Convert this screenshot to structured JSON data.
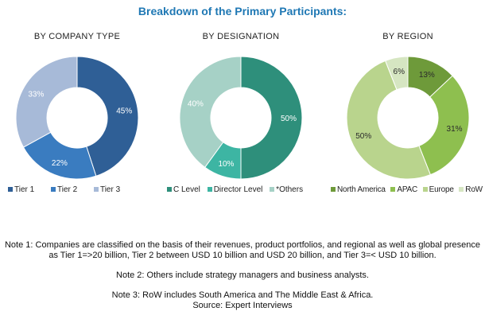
{
  "title": "Breakdown of the Primary Participants:",
  "chart_data": [
    {
      "type": "pie",
      "title": "BY COMPANY TYPE",
      "categories": [
        "Tier 1",
        "Tier 2",
        "Tier 3"
      ],
      "values": [
        45,
        22,
        33
      ],
      "labels": [
        "45%",
        "22%",
        "33%"
      ],
      "colors": [
        "#2f5f96",
        "#3a7cc0",
        "#a7bad8"
      ],
      "label_colors": [
        "#ffffff",
        "#ffffff",
        "#ffffff"
      ],
      "legend_labels": [
        "Tier 1",
        "Tier 2",
        "Tier 3"
      ]
    },
    {
      "type": "pie",
      "title": "BY DESIGNATION",
      "categories": [
        "C Level",
        "Director Level",
        "*Others"
      ],
      "values": [
        50,
        10,
        40
      ],
      "labels": [
        "50%",
        "10%",
        "40%"
      ],
      "colors": [
        "#2e8f7b",
        "#3db5a3",
        "#a6d1c6"
      ],
      "label_colors": [
        "#ffffff",
        "#ffffff",
        "#ffffff"
      ],
      "legend_labels": [
        "C Level",
        "Director Level",
        "*Others"
      ]
    },
    {
      "type": "pie",
      "title": "BY REGION",
      "categories": [
        "North America",
        "APAC",
        "Europe",
        "RoW"
      ],
      "values": [
        13,
        31,
        50,
        6
      ],
      "labels": [
        "13%",
        "31%",
        "50%",
        "6%"
      ],
      "colors": [
        "#6e9a3a",
        "#8ebf4f",
        "#b9d48d",
        "#d6e6c2"
      ],
      "label_colors": [
        "#2b2b2b",
        "#2b2b2b",
        "#2b2b2b",
        "#2b2b2b"
      ],
      "legend_labels": [
        "North America",
        "APAC",
        "Europe",
        "RoW"
      ]
    }
  ],
  "notes": {
    "note1": "Note 1: Companies are classified on the basis of their revenues, product portfolios, and regional as well as global presence as Tier 1=>20 billion, Tier 2 between USD 10 billion and USD 20 billion, and Tier 3=< USD 10 billion.",
    "note2": "Note 2: Others include strategy managers and business analysts.",
    "note3": "Note 3: RoW includes South America and The Middle East & Africa.",
    "source": "Source: Expert Interviews"
  }
}
